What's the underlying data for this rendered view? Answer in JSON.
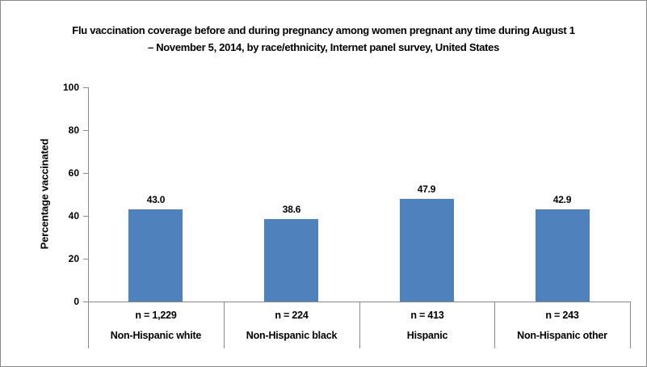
{
  "title": {
    "line1": "Flu vaccination coverage before and during pregnancy among women pregnant any time during August 1",
    "line2": "– November 5, 2014, by race/ethnicity, Internet panel survey, United States"
  },
  "chart_data": {
    "type": "bar",
    "title": "Flu vaccination coverage before and during pregnancy among women pregnant any time during August 1 – November 5, 2014, by race/ethnicity, Internet panel survey, United States",
    "xlabel": "",
    "ylabel": "Percentage vaccinated",
    "ylim": [
      0,
      100
    ],
    "yticks": [
      0,
      20,
      40,
      60,
      80,
      100
    ],
    "grid": false,
    "legend": false,
    "categories": [
      "Non-Hispanic white",
      "Non-Hispanic black",
      "Hispanic",
      "Non-Hispanic other"
    ],
    "sample_sizes": [
      "n = 1,229",
      "n = 224",
      "n = 413",
      "n = 243"
    ],
    "values": [
      43.0,
      38.6,
      47.9,
      42.9
    ],
    "value_labels": [
      "43.0",
      "38.6",
      "47.9",
      "42.9"
    ],
    "bar_color": "#4F81BD",
    "axis_color": "#8a8a8a",
    "text_color": "#000000"
  }
}
